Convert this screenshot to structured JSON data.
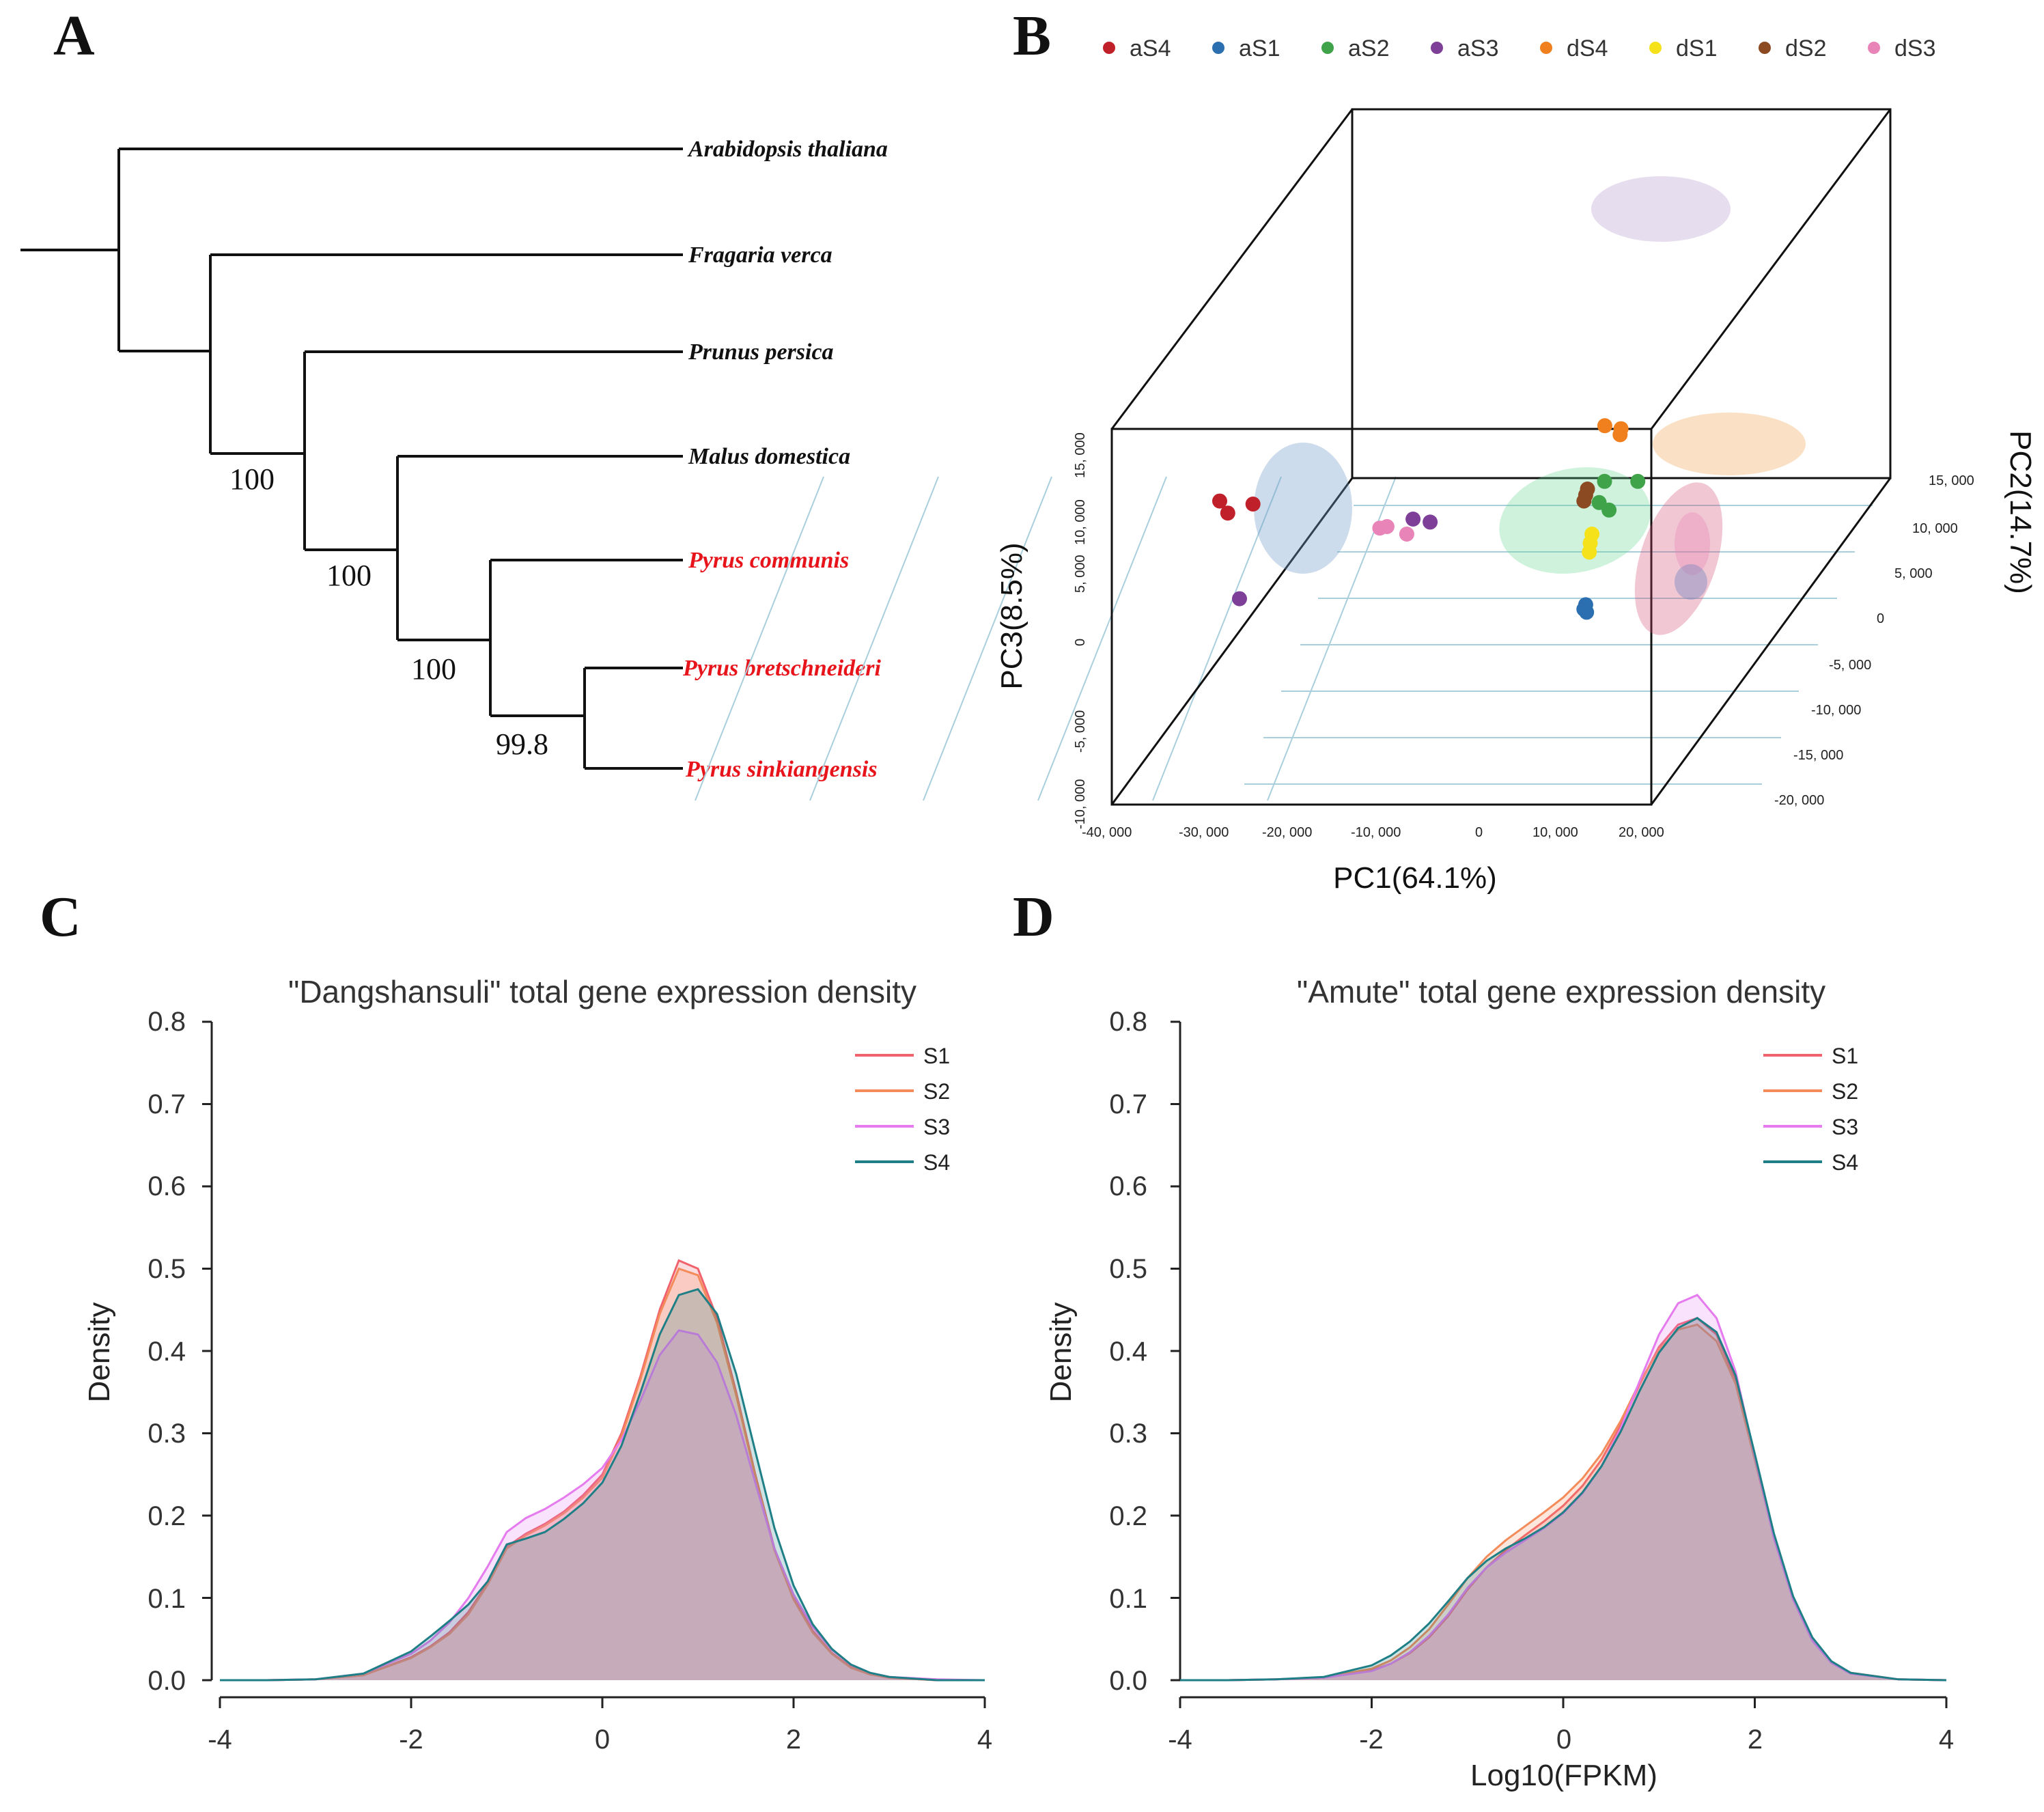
{
  "panels": {
    "A": {
      "letter": "A"
    },
    "B": {
      "letter": "B"
    },
    "C": {
      "letter": "C"
    },
    "D": {
      "letter": "D"
    }
  },
  "tree": {
    "taxa": [
      {
        "name": "Arabidopsis thaliana",
        "color": "#111111"
      },
      {
        "name": "Fragaria verca",
        "color": "#111111"
      },
      {
        "name": "Prunus persica",
        "color": "#111111"
      },
      {
        "name": "Malus domestica",
        "color": "#111111"
      },
      {
        "name": "Pyrus communis",
        "color": "#e8141b"
      },
      {
        "name": "Pyrus bretschneideri",
        "color": "#e8141b"
      },
      {
        "name": "Pyrus sinkiangensis",
        "color": "#e8141b"
      }
    ],
    "bootstrap": [
      "100",
      "100",
      "100",
      "99.8"
    ]
  },
  "chart_data": [
    {
      "type": "scatter",
      "title": "",
      "xlabel": "PC1(64.1%)",
      "ylabel": "PC2(14.7%)",
      "zlabel": "PC3(8.5%)",
      "legend": [
        {
          "label": "aS4",
          "color": "#c0202a"
        },
        {
          "label": "aS1",
          "color": "#2c6fb0"
        },
        {
          "label": "aS2",
          "color": "#3fa34a"
        },
        {
          "label": "aS3",
          "color": "#7d3f98"
        },
        {
          "label": "dS4",
          "color": "#f07f1d"
        },
        {
          "label": "dS1",
          "color": "#f5e21b"
        },
        {
          "label": "dS2",
          "color": "#8b4a22"
        },
        {
          "label": "dS3",
          "color": "#e884b8"
        }
      ],
      "x_ticks": [
        "-40, 000",
        "-30, 000",
        "-20, 000",
        "-10, 000",
        "0",
        "10, 000",
        "20, 000"
      ],
      "y_ticks": [
        "15, 000",
        "10, 000",
        "5, 000",
        "0",
        "-5, 000",
        "-10, 000",
        "-15, 000",
        "-20, 000"
      ],
      "z_ticks": [
        "15, 000",
        "10, 000",
        "5, 000",
        "0",
        "-5, 000",
        "-10, 000"
      ],
      "points": [
        {
          "group": "aS4",
          "pc1": -28000,
          "pc2": 0,
          "pc3": 10200
        },
        {
          "group": "aS4",
          "pc1": -27100,
          "pc2": 0,
          "pc3": 9400
        },
        {
          "group": "aS4",
          "pc1": -24300,
          "pc2": 0,
          "pc3": 10000
        },
        {
          "group": "aS3",
          "pc1": -25800,
          "pc2": 0,
          "pc3": 3700
        },
        {
          "group": "aS2",
          "pc1": 15300,
          "pc2": 0,
          "pc3": 9600
        },
        {
          "group": "aS2",
          "pc1": 4100,
          "pc2": 14000,
          "pc3": 3000
        },
        {
          "group": "aS2",
          "pc1": 7800,
          "pc2": 14000,
          "pc3": 3000
        },
        {
          "group": "aS3",
          "pc1": -6500,
          "pc2": 0,
          "pc3": 9000
        },
        {
          "group": "aS3",
          "pc1": -4600,
          "pc2": 0,
          "pc3": 8800
        },
        {
          "group": "dS3",
          "pc1": -10200,
          "pc2": 0,
          "pc3": 8400
        },
        {
          "group": "dS3",
          "pc1": -9400,
          "pc2": 0,
          "pc3": 8500
        },
        {
          "group": "dS3",
          "pc1": -7200,
          "pc2": 0,
          "pc3": 8000
        },
        {
          "group": "dS4",
          "pc1": 13300,
          "pc2": 2000,
          "pc3": 14000
        },
        {
          "group": "dS4",
          "pc1": 15100,
          "pc2": 2000,
          "pc3": 13800
        },
        {
          "group": "dS4",
          "pc1": 15000,
          "pc2": 2000,
          "pc3": 13400
        },
        {
          "group": "dS2",
          "pc1": 12900,
          "pc2": 0,
          "pc3": 11000
        },
        {
          "group": "dS2",
          "pc1": 12700,
          "pc2": 0,
          "pc3": 10600
        },
        {
          "group": "dS2",
          "pc1": 12500,
          "pc2": 0,
          "pc3": 10200
        },
        {
          "group": "aS2",
          "pc1": 14200,
          "pc2": 0,
          "pc3": 10100
        },
        {
          "group": "dS1",
          "pc1": 13400,
          "pc2": 0,
          "pc3": 8000
        },
        {
          "group": "dS1",
          "pc1": 13200,
          "pc2": 0,
          "pc3": 7400
        },
        {
          "group": "dS1",
          "pc1": 13100,
          "pc2": 0,
          "pc3": 6800
        },
        {
          "group": "aS1",
          "pc1": 12700,
          "pc2": 0,
          "pc3": 3300
        },
        {
          "group": "aS1",
          "pc1": 12500,
          "pc2": 0,
          "pc3": 3000
        },
        {
          "group": "aS1",
          "pc1": 12800,
          "pc2": 0,
          "pc3": 2800
        }
      ]
    },
    {
      "type": "area",
      "title": "\"Dangshansuli\" total gene expression density",
      "xlabel": "",
      "ylabel": "Density",
      "xlim": [
        -4,
        4
      ],
      "ylim": [
        0,
        0.8
      ],
      "x_ticks": [
        -4,
        -2,
        0,
        2,
        4
      ],
      "y_ticks": [
        "0.0",
        "0.1",
        "0.2",
        "0.3",
        "0.4",
        "0.5",
        "0.6",
        "0.7",
        "0.8"
      ],
      "x": [
        -4,
        -3.5,
        -3,
        -2.5,
        -2,
        -1.8,
        -1.6,
        -1.4,
        -1.2,
        -1,
        -0.8,
        -0.6,
        -0.4,
        -0.2,
        0,
        0.2,
        0.4,
        0.6,
        0.8,
        1,
        1.2,
        1.4,
        1.6,
        1.8,
        2,
        2.2,
        2.4,
        2.6,
        2.8,
        3,
        3.5,
        4
      ],
      "series": [
        {
          "name": "S1",
          "color": "#f0626c",
          "fill": "rgba(240,98,108,0.22)",
          "values": [
            0,
            0,
            0.001,
            0.006,
            0.028,
            0.041,
            0.058,
            0.083,
            0.118,
            0.162,
            0.178,
            0.19,
            0.205,
            0.225,
            0.25,
            0.3,
            0.37,
            0.45,
            0.51,
            0.5,
            0.44,
            0.35,
            0.25,
            0.16,
            0.1,
            0.06,
            0.033,
            0.016,
            0.007,
            0.003,
            0,
            0
          ]
        },
        {
          "name": "S2",
          "color": "#f48b5a",
          "fill": "rgba(244,139,90,0.22)",
          "values": [
            0,
            0,
            0.001,
            0.006,
            0.027,
            0.04,
            0.056,
            0.08,
            0.116,
            0.16,
            0.176,
            0.188,
            0.203,
            0.222,
            0.246,
            0.296,
            0.366,
            0.445,
            0.5,
            0.492,
            0.434,
            0.346,
            0.248,
            0.158,
            0.098,
            0.058,
            0.032,
            0.015,
            0.007,
            0.003,
            0,
            0
          ]
        },
        {
          "name": "S3",
          "color": "#e57bee",
          "fill": "rgba(229,123,238,0.22)",
          "values": [
            0,
            0,
            0.001,
            0.008,
            0.032,
            0.048,
            0.07,
            0.1,
            0.138,
            0.18,
            0.197,
            0.208,
            0.222,
            0.238,
            0.258,
            0.292,
            0.34,
            0.395,
            0.425,
            0.42,
            0.386,
            0.322,
            0.24,
            0.16,
            0.104,
            0.065,
            0.037,
            0.019,
            0.009,
            0.004,
            0.001,
            0
          ]
        },
        {
          "name": "S4",
          "color": "#1f7f86",
          "fill": "rgba(31,127,134,0.22)",
          "values": [
            0,
            0,
            0.001,
            0.008,
            0.035,
            0.053,
            0.072,
            0.092,
            0.12,
            0.165,
            0.172,
            0.18,
            0.196,
            0.215,
            0.24,
            0.285,
            0.35,
            0.42,
            0.468,
            0.475,
            0.445,
            0.372,
            0.278,
            0.185,
            0.115,
            0.068,
            0.038,
            0.019,
            0.009,
            0.004,
            0,
            0
          ]
        }
      ]
    },
    {
      "type": "area",
      "title": "\"Amute\" total gene expression density",
      "xlabel": "Log10(FPKM)",
      "ylabel": "Density",
      "xlim": [
        -4,
        4
      ],
      "ylim": [
        0,
        0.8
      ],
      "x_ticks": [
        -4,
        -2,
        0,
        2,
        4
      ],
      "y_ticks": [
        "0.0",
        "0.1",
        "0.2",
        "0.3",
        "0.4",
        "0.5",
        "0.6",
        "0.7",
        "0.8"
      ],
      "x": [
        -4,
        -3.5,
        -3,
        -2.5,
        -2,
        -1.8,
        -1.6,
        -1.4,
        -1.2,
        -1,
        -0.8,
        -0.6,
        -0.4,
        -0.2,
        0,
        0.2,
        0.4,
        0.6,
        0.8,
        1,
        1.2,
        1.4,
        1.6,
        1.8,
        2,
        2.2,
        2.4,
        2.6,
        2.8,
        3,
        3.5,
        4
      ],
      "series": [
        {
          "name": "S1",
          "color": "#f0626c",
          "fill": "rgba(240,98,108,0.22)",
          "values": [
            0,
            0,
            0.001,
            0.003,
            0.012,
            0.02,
            0.033,
            0.052,
            0.078,
            0.11,
            0.137,
            0.158,
            0.176,
            0.193,
            0.212,
            0.236,
            0.268,
            0.31,
            0.36,
            0.405,
            0.432,
            0.44,
            0.42,
            0.365,
            0.27,
            0.175,
            0.1,
            0.05,
            0.022,
            0.009,
            0.001,
            0
          ]
        },
        {
          "name": "S2",
          "color": "#f48b5a",
          "fill": "rgba(244,139,90,0.22)",
          "values": [
            0,
            0,
            0.001,
            0.003,
            0.014,
            0.024,
            0.04,
            0.062,
            0.092,
            0.124,
            0.15,
            0.17,
            0.187,
            0.204,
            0.222,
            0.245,
            0.275,
            0.315,
            0.362,
            0.402,
            0.426,
            0.432,
            0.412,
            0.36,
            0.268,
            0.174,
            0.1,
            0.05,
            0.022,
            0.009,
            0.001,
            0
          ]
        },
        {
          "name": "S3",
          "color": "#e57bee",
          "fill": "rgba(229,123,238,0.22)",
          "values": [
            0,
            0,
            0.001,
            0.003,
            0.011,
            0.02,
            0.034,
            0.054,
            0.08,
            0.112,
            0.137,
            0.155,
            0.17,
            0.185,
            0.203,
            0.227,
            0.26,
            0.306,
            0.364,
            0.42,
            0.458,
            0.468,
            0.44,
            0.375,
            0.272,
            0.172,
            0.098,
            0.048,
            0.021,
            0.008,
            0.001,
            0
          ]
        },
        {
          "name": "S4",
          "color": "#1f7f86",
          "fill": "rgba(31,127,134,0.22)",
          "values": [
            0,
            0,
            0.001,
            0.004,
            0.018,
            0.03,
            0.047,
            0.069,
            0.096,
            0.124,
            0.145,
            0.16,
            0.172,
            0.186,
            0.204,
            0.228,
            0.26,
            0.302,
            0.352,
            0.398,
            0.428,
            0.44,
            0.423,
            0.37,
            0.275,
            0.178,
            0.102,
            0.052,
            0.023,
            0.009,
            0.001,
            0
          ]
        }
      ]
    }
  ]
}
